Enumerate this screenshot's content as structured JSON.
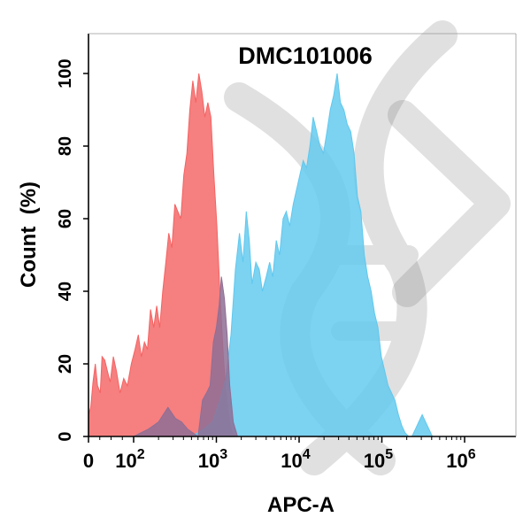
{
  "chart_data": {
    "type": "area",
    "title": "DMC101006",
    "xlabel": "APC-A",
    "ylabel": "Count  (%)",
    "xscale": "log (biexponential)",
    "ylim": [
      0,
      100
    ],
    "grid": false,
    "x_ticks": [
      {
        "value": 0,
        "base": "0",
        "exp": ""
      },
      {
        "value": 100,
        "base": "10",
        "exp": "2"
      },
      {
        "value": 1000,
        "base": "10",
        "exp": "3"
      },
      {
        "value": 10000,
        "base": "10",
        "exp": "4"
      },
      {
        "value": 100000,
        "base": "10",
        "exp": "5"
      },
      {
        "value": 1000000,
        "base": "10",
        "exp": "6"
      }
    ],
    "y_ticks": [
      "0",
      "20",
      "40",
      "60",
      "80",
      "100"
    ],
    "series": [
      {
        "color": "#f46363",
        "x": [
          0,
          5,
          10,
          15,
          20,
          26,
          30,
          36,
          42,
          48,
          55,
          62,
          70,
          78,
          86,
          95,
          104,
          114,
          124,
          135,
          147,
          160,
          175,
          190,
          207,
          225,
          245,
          266,
          290,
          315,
          342,
          372,
          404,
          440,
          478,
          520,
          565,
          614,
          668,
          726,
          790,
          858,
          933,
          1015,
          1103,
          1200,
          1300,
          1420,
          1550,
          1700
        ],
        "y": [
          6,
          8,
          15,
          20,
          14,
          12,
          22,
          21,
          18,
          15,
          22,
          18,
          12,
          16,
          14,
          20,
          24,
          28,
          22,
          26,
          24,
          35,
          30,
          36,
          30,
          40,
          48,
          56,
          52,
          64,
          62,
          60,
          72,
          78,
          90,
          98,
          92,
          100,
          95,
          88,
          92,
          88,
          72,
          58,
          40,
          24,
          12,
          5,
          1,
          0
        ]
      },
      {
        "color": "#5fc8ee",
        "x": [
          0,
          100,
          300,
          500,
          700,
          900,
          1100,
          1300,
          1500,
          1700,
          1900,
          2100,
          2300,
          2500,
          2700,
          3000,
          3300,
          3600,
          4000,
          4400,
          4800,
          5300,
          5800,
          6400,
          7000,
          7700,
          8500,
          9300,
          10200,
          11200,
          12300,
          13500,
          14800,
          16300,
          17900,
          19700,
          21700,
          23800,
          26200,
          28800,
          31600,
          34800,
          38200,
          42000,
          46200,
          50800,
          55800,
          61400,
          67500,
          74200,
          81600,
          89700,
          98600,
          108400,
          119200,
          131000,
          144000,
          158300,
          174000,
          191300,
          210300,
          231200,
          254200,
          279500,
          307200,
          337800,
          371300,
          408200,
          448800,
          493400,
          542400,
          596300,
          655600,
          720800,
          792400
        ],
        "y": [
          0,
          0,
          0,
          0,
          2,
          4,
          10,
          16,
          28,
          46,
          56,
          48,
          62,
          54,
          42,
          48,
          46,
          40,
          44,
          48,
          44,
          54,
          50,
          60,
          62,
          58,
          64,
          68,
          72,
          76,
          74,
          80,
          88,
          84,
          80,
          78,
          84,
          90,
          94,
          100,
          92,
          90,
          86,
          84,
          78,
          66,
          62,
          50,
          44,
          40,
          34,
          30,
          22,
          18,
          14,
          12,
          10,
          6,
          3,
          1,
          0,
          0,
          2,
          4,
          6,
          4,
          2,
          0,
          0,
          0,
          0,
          0,
          0,
          0,
          0
        ]
      },
      {
        "color": "#8e6f95",
        "x": [
          0,
          100,
          150,
          200,
          260,
          320,
          380,
          450,
          520,
          600,
          680,
          760,
          840,
          920,
          1000,
          1080,
          1150,
          1250,
          1350,
          1450,
          1600,
          1800
        ],
        "y": [
          0,
          0,
          2,
          4,
          8,
          5,
          4,
          2,
          1,
          0,
          10,
          12,
          14,
          26,
          30,
          36,
          44,
          38,
          28,
          14,
          4,
          0
        ]
      }
    ]
  }
}
